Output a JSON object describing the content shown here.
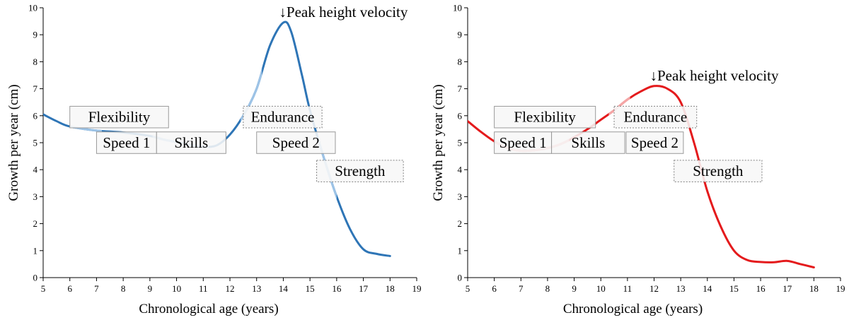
{
  "chart_data": [
    {
      "type": "line",
      "xlabel": "Chronological age (years)",
      "ylabel": "Growth per year (cm)",
      "xlim": [
        5,
        19
      ],
      "ylim": [
        0,
        10
      ],
      "x_ticks": [
        "5",
        "6",
        "7",
        "8",
        "9",
        "10",
        "11",
        "12",
        "13",
        "14",
        "15",
        "16",
        "17",
        "18",
        "19"
      ],
      "y_ticks": [
        "0",
        "1",
        "2",
        "3",
        "4",
        "5",
        "6",
        "7",
        "8",
        "9",
        "10"
      ],
      "grid": false,
      "colors": {
        "line": "#2e75b6",
        "highlight": "#9dc3e6"
      },
      "series": [
        {
          "x": [
            5,
            5.5,
            6,
            7,
            8,
            9,
            9.5,
            10,
            10.5,
            11,
            11.5,
            12,
            12.5,
            13,
            13.5,
            14,
            14.3,
            14.7,
            15,
            15.5,
            16,
            16.5,
            17,
            17.5,
            18
          ],
          "y": [
            6.05,
            5.8,
            5.6,
            5.45,
            5.38,
            5.25,
            5.12,
            5.02,
            4.92,
            4.85,
            4.9,
            5.3,
            6.0,
            7.0,
            8.6,
            9.45,
            9.1,
            7.5,
            6.2,
            4.5,
            3.0,
            1.8,
            1.05,
            0.88,
            0.8
          ]
        }
      ],
      "highlights": [
        [
          6,
          7.2
        ],
        [
          9.1,
          11.2
        ],
        [
          12.4,
          13.2
        ],
        [
          15.3,
          16
        ]
      ],
      "annotation": {
        "text": "↓Peak height velocity",
        "x": 14,
        "y": 9.45
      },
      "labels": [
        {
          "text": "Flexibility",
          "x0": 6,
          "x1": 9.7,
          "y0": 5.55,
          "y1": 6.35,
          "style": "solid"
        },
        {
          "text": "Speed 1",
          "x0": 7,
          "x1": 9.25,
          "y0": 4.6,
          "y1": 5.4,
          "style": "solid"
        },
        {
          "text": "Skills",
          "x0": 9.25,
          "x1": 11.85,
          "y0": 4.6,
          "y1": 5.4,
          "style": "solid"
        },
        {
          "text": "Endurance",
          "x0": 12.5,
          "x1": 15.45,
          "y0": 5.55,
          "y1": 6.35,
          "style": "dotted"
        },
        {
          "text": "Speed 2",
          "x0": 13,
          "x1": 15.95,
          "y0": 4.6,
          "y1": 5.4,
          "style": "solid"
        },
        {
          "text": "Strength",
          "x0": 15.25,
          "x1": 18.5,
          "y0": 3.55,
          "y1": 4.35,
          "style": "dotted"
        }
      ]
    },
    {
      "type": "line",
      "xlabel": "Chronological age (years)",
      "ylabel": "Growth per year (cm)",
      "xlim": [
        5,
        19
      ],
      "ylim": [
        0,
        10
      ],
      "x_ticks": [
        "5",
        "6",
        "7",
        "8",
        "9",
        "10",
        "11",
        "12",
        "13",
        "14",
        "15",
        "16",
        "17",
        "18",
        "19"
      ],
      "y_ticks": [
        "0",
        "1",
        "2",
        "3",
        "4",
        "5",
        "6",
        "7",
        "8",
        "9",
        "10"
      ],
      "grid": false,
      "colors": {
        "line": "#e41a1c",
        "highlight": "#f4a6a6"
      },
      "series": [
        {
          "x": [
            5,
            5.5,
            6,
            6.5,
            7,
            7.5,
            8,
            8.5,
            9,
            9.5,
            10,
            10.5,
            11,
            11.5,
            12,
            12.5,
            13,
            13.5,
            14,
            14.5,
            15,
            15.5,
            16,
            16.5,
            17,
            17.5,
            18
          ],
          "y": [
            5.8,
            5.4,
            5.05,
            4.8,
            4.7,
            4.72,
            4.8,
            4.95,
            5.2,
            5.5,
            5.85,
            6.2,
            6.6,
            6.9,
            7.1,
            7.0,
            6.5,
            5.0,
            3.2,
            1.9,
            1.0,
            0.65,
            0.58,
            0.57,
            0.62,
            0.5,
            0.38
          ]
        }
      ],
      "highlights": [
        [
          6,
          8.8
        ],
        [
          10.3,
          11.1
        ]
      ],
      "annotation": {
        "text": "↓Peak height velocity",
        "x": 12,
        "y": 7.1
      },
      "labels": [
        {
          "text": "Flexibility",
          "x0": 6,
          "x1": 9.8,
          "y0": 5.55,
          "y1": 6.35,
          "style": "solid"
        },
        {
          "text": "Speed 1",
          "x0": 6,
          "x1": 8.15,
          "y0": 4.6,
          "y1": 5.4,
          "style": "solid"
        },
        {
          "text": "Skills",
          "x0": 8.15,
          "x1": 10.9,
          "y0": 4.6,
          "y1": 5.4,
          "style": "solid"
        },
        {
          "text": "Endurance",
          "x0": 10.5,
          "x1": 13.6,
          "y0": 5.55,
          "y1": 6.35,
          "style": "dotted"
        },
        {
          "text": "Speed 2",
          "x0": 10.95,
          "x1": 13.1,
          "y0": 4.6,
          "y1": 5.4,
          "style": "solid"
        },
        {
          "text": "Strength",
          "x0": 12.75,
          "x1": 16.05,
          "y0": 3.55,
          "y1": 4.35,
          "style": "dotted"
        }
      ]
    }
  ]
}
